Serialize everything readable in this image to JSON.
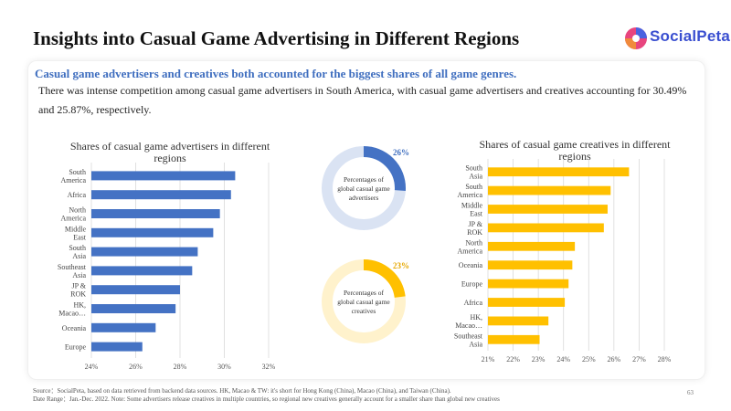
{
  "page": {
    "title": "Insights into Casual Game Advertising in Different Regions",
    "logo_text": "SocialPeta",
    "headline": "Casual game advertisers and creatives both accounted for the biggest shares of all game genres.",
    "body": "There was intense competition among casual game advertisers in South America, with casual game advertisers and creatives accounting for 30.49% and 25.87%, respectively.",
    "footer_source": "Source：SocialPeta, based on data retrieved from backend data sources. HK, Macao & TW: it's short for Hong Kong (China), Macao (China), and Taiwan (China).",
    "footer_date": "Date Range：Jan.-Dec. 2022. Note: Some advertisers release creatives in multiple countries, so regional new creatives generally account for a smaller share than global new creatives",
    "page_number": "63"
  },
  "colors": {
    "blue": "#4472c4",
    "blue_light": "#dae3f3",
    "yellow": "#ffc000",
    "yellow_light": "#fff2cc",
    "accent_text": "#3f6ebf",
    "grid": "#d9d9d9"
  },
  "chart_data": [
    {
      "type": "bar",
      "orientation": "horizontal",
      "title": "Shares of casual game advertisers in different regions",
      "categories": [
        "South America",
        "Africa",
        "North America",
        "Middle East",
        "South Asia",
        "Southeast Asia",
        "JP & ROK",
        "HK, Macao…",
        "Oceania",
        "Europe"
      ],
      "values": [
        30.49,
        30.3,
        29.8,
        29.5,
        28.8,
        28.55,
        28.0,
        27.8,
        26.9,
        26.3
      ],
      "xlim": [
        24,
        32
      ],
      "x_ticks": [
        "24%",
        "26%",
        "28%",
        "30%",
        "32%"
      ],
      "grid": true,
      "color": "#4472c4"
    },
    {
      "type": "pie",
      "subtype": "donut",
      "label": "Percentages of global casual game advertisers",
      "value_label": "26%",
      "value": 26,
      "color": "#4472c4",
      "track_color": "#dae3f3"
    },
    {
      "type": "pie",
      "subtype": "donut",
      "label": "Percentages of global casual game creatives",
      "value_label": "23%",
      "value": 23,
      "color": "#ffc000",
      "track_color": "#fff2cc"
    },
    {
      "type": "bar",
      "orientation": "horizontal",
      "title": "Shares of casual game creatives in different regions",
      "categories": [
        "South Asia",
        "South America",
        "Middle East",
        "JP & ROK",
        "North America",
        "Oceania",
        "Europe",
        "Africa",
        "HK, Macao…",
        "Southeast Asia"
      ],
      "values": [
        26.6,
        25.87,
        25.75,
        25.6,
        24.45,
        24.35,
        24.2,
        24.05,
        23.4,
        23.05
      ],
      "xlim": [
        21,
        28
      ],
      "x_ticks": [
        "21%",
        "22%",
        "23%",
        "24%",
        "25%",
        "26%",
        "27%",
        "28%"
      ],
      "grid": true,
      "color": "#ffc000"
    }
  ]
}
